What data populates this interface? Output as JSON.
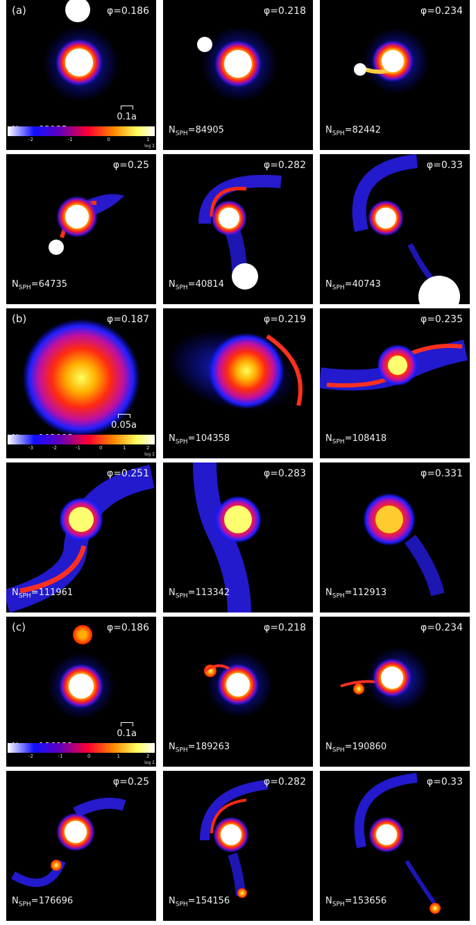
{
  "colorbar_label": "log Σ",
  "groups": [
    {
      "label": "(a)",
      "scale_label": "0.1a",
      "colorbar_ticks": [
        "-2",
        "-1",
        "0",
        "1"
      ],
      "panels": [
        {
          "phi": "φ=0.186",
          "nsph": "83935"
        },
        {
          "phi": "φ=0.218",
          "nsph": "84905"
        },
        {
          "phi": "φ=0.234",
          "nsph": "82442"
        },
        {
          "phi": "φ=0.25",
          "nsph": "64735"
        },
        {
          "phi": "φ=0.282",
          "nsph": "40814"
        },
        {
          "phi": "φ=0.33",
          "nsph": "40743"
        }
      ]
    },
    {
      "label": "(b)",
      "scale_label": "0.05a",
      "colorbar_ticks": [
        "-3",
        "-2",
        "-1",
        "0",
        "1",
        "2"
      ],
      "panels": [
        {
          "phi": "φ=0.187",
          "nsph": "102998"
        },
        {
          "phi": "φ=0.219",
          "nsph": "104358"
        },
        {
          "phi": "φ=0.235",
          "nsph": "108418"
        },
        {
          "phi": "φ=0.251",
          "nsph": "111961"
        },
        {
          "phi": "φ=0.283",
          "nsph": "113342"
        },
        {
          "phi": "φ=0.331",
          "nsph": "112913"
        }
      ]
    },
    {
      "label": "(c)",
      "scale_label": "0.1a",
      "colorbar_ticks": [
        "-2",
        "-1",
        "0",
        "1",
        "2"
      ],
      "panels": [
        {
          "phi": "φ=0.186",
          "nsph": "186933"
        },
        {
          "phi": "φ=0.218",
          "nsph": "189263"
        },
        {
          "phi": "φ=0.234",
          "nsph": "190860"
        },
        {
          "phi": "φ=0.25",
          "nsph": "176696"
        },
        {
          "phi": "φ=0.282",
          "nsph": "154156"
        },
        {
          "phi": "φ=0.33",
          "nsph": "153656"
        }
      ]
    }
  ]
}
